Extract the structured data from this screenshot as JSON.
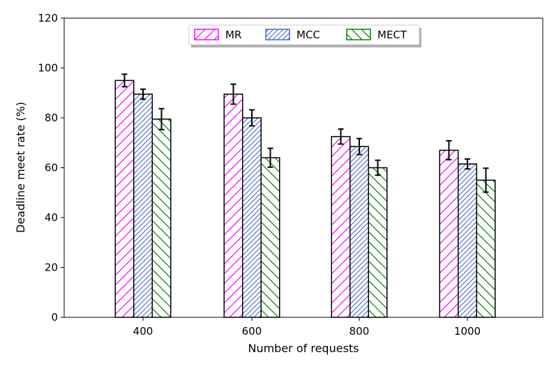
{
  "chart_data": {
    "type": "bar",
    "title": "",
    "xlabel": "Number of requests",
    "ylabel": "Deadline meet rate (%)",
    "ylim": [
      0,
      120
    ],
    "yticks": [
      "0",
      "20",
      "40",
      "60",
      "80",
      "100",
      "120"
    ],
    "categories": [
      "400",
      "600",
      "800",
      "1000"
    ],
    "legend_position": "top-center",
    "series": [
      {
        "name": "MR",
        "color": "#ff00ff",
        "hatch": "forward",
        "values": [
          95,
          89.5,
          72.5,
          67
        ],
        "errors": [
          2.5,
          4,
          3,
          3.8
        ]
      },
      {
        "name": "MCC",
        "color": "#4466cc",
        "hatch": "dense-forward",
        "values": [
          89.5,
          80,
          68.5,
          61.5
        ],
        "errors": [
          2,
          3.2,
          3.2,
          2
        ]
      },
      {
        "name": "MECT",
        "color": "#008000",
        "hatch": "backward",
        "values": [
          79.5,
          64,
          60,
          55
        ],
        "errors": [
          4.2,
          3.8,
          3,
          4.8
        ]
      }
    ]
  }
}
